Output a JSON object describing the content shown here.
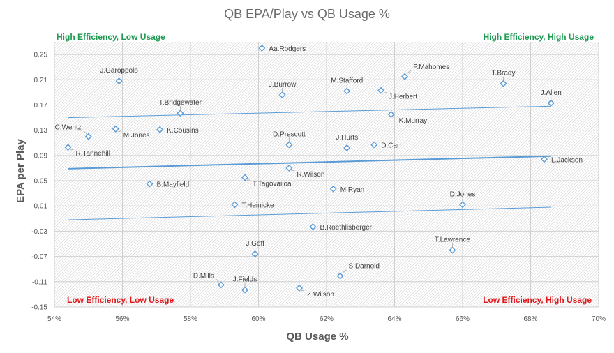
{
  "chart_data": {
    "type": "scatter",
    "title": "QB EPA/Play vs QB Usage %",
    "xlabel": "QB Usage %",
    "ylabel": "EPA per Play",
    "xlim": [
      0.54,
      0.7
    ],
    "ylim": [
      -0.15,
      0.27
    ],
    "x_ticks": [
      0.54,
      0.56,
      0.58,
      0.6,
      0.62,
      0.64,
      0.66,
      0.68,
      0.7
    ],
    "x_tick_labels": [
      "54%",
      "56%",
      "58%",
      "60%",
      "62%",
      "64%",
      "66%",
      "68%",
      "70%"
    ],
    "y_ticks": [
      -0.15,
      -0.11,
      -0.07,
      -0.03,
      0.01,
      0.05,
      0.09,
      0.13,
      0.17,
      0.21,
      0.25
    ],
    "y_tick_labels": [
      "-0.15",
      "-0.11",
      "-0.07",
      "-0.03",
      "0.01",
      "0.05",
      "0.09",
      "0.13",
      "0.17",
      "0.21",
      "0.25"
    ],
    "grid": true,
    "marker": "diamond-open",
    "marker_color": "#5b9bd5",
    "trend_color": "#5b9bd5",
    "positive_color": "#1f9a52",
    "negative_color": "#e0171b",
    "quadrant_labels": [
      {
        "text": "High Efficiency, Low Usage",
        "position": "top-left",
        "tone": "positive"
      },
      {
        "text": "High Efficiency, High Usage",
        "position": "top-right",
        "tone": "positive"
      },
      {
        "text": "Low Efficiency, Low Usage",
        "position": "bottom-left",
        "tone": "negative"
      },
      {
        "text": "Low Efficiency, High Usage",
        "position": "bottom-right",
        "tone": "negative"
      }
    ],
    "points": [
      {
        "name": "Aa.Rodgers",
        "x": 0.601,
        "y": 0.26,
        "label": "right"
      },
      {
        "name": "P.Mahomes",
        "x": 0.643,
        "y": 0.215,
        "label": "above-right"
      },
      {
        "name": "T.Brady",
        "x": 0.672,
        "y": 0.204,
        "label": "above"
      },
      {
        "name": "J.Garoppolo",
        "x": 0.559,
        "y": 0.208,
        "label": "above"
      },
      {
        "name": "J.Burrow",
        "x": 0.607,
        "y": 0.186,
        "label": "above"
      },
      {
        "name": "M.Stafford",
        "x": 0.626,
        "y": 0.192,
        "label": "above"
      },
      {
        "name": "J.Herbert",
        "x": 0.636,
        "y": 0.193,
        "label": "below-right"
      },
      {
        "name": "J.Allen",
        "x": 0.686,
        "y": 0.173,
        "label": "above"
      },
      {
        "name": "T.Bridgewater",
        "x": 0.577,
        "y": 0.157,
        "label": "above"
      },
      {
        "name": "K.Murray",
        "x": 0.639,
        "y": 0.155,
        "label": "below-right"
      },
      {
        "name": "C.Wentz",
        "x": 0.55,
        "y": 0.12,
        "label": "above-left"
      },
      {
        "name": "M.Jones",
        "x": 0.558,
        "y": 0.132,
        "label": "below-right"
      },
      {
        "name": "K.Cousins",
        "x": 0.571,
        "y": 0.131,
        "label": "right"
      },
      {
        "name": "R.Tannehill",
        "x": 0.544,
        "y": 0.103,
        "label": "below-right"
      },
      {
        "name": "D.Prescott",
        "x": 0.609,
        "y": 0.107,
        "label": "above"
      },
      {
        "name": "J.Hurts",
        "x": 0.626,
        "y": 0.102,
        "label": "above"
      },
      {
        "name": "D.Carr",
        "x": 0.634,
        "y": 0.107,
        "label": "right"
      },
      {
        "name": "L.Jackson",
        "x": 0.684,
        "y": 0.084,
        "label": "right"
      },
      {
        "name": "R.Wilson",
        "x": 0.609,
        "y": 0.07,
        "label": "below-right"
      },
      {
        "name": "T.Tagovailoa",
        "x": 0.596,
        "y": 0.055,
        "label": "below-right"
      },
      {
        "name": "B.Mayfield",
        "x": 0.568,
        "y": 0.045,
        "label": "right"
      },
      {
        "name": "M.Ryan",
        "x": 0.622,
        "y": 0.037,
        "label": "right"
      },
      {
        "name": "D.Jones",
        "x": 0.66,
        "y": 0.012,
        "label": "above"
      },
      {
        "name": "T.Heinicke",
        "x": 0.593,
        "y": 0.012,
        "label": "right"
      },
      {
        "name": "B.Roethlisberger",
        "x": 0.616,
        "y": -0.023,
        "label": "right"
      },
      {
        "name": "T.Lawrence",
        "x": 0.657,
        "y": -0.06,
        "label": "above"
      },
      {
        "name": "J.Goff",
        "x": 0.599,
        "y": -0.066,
        "label": "above"
      },
      {
        "name": "S.Darnold",
        "x": 0.624,
        "y": -0.101,
        "label": "above-right"
      },
      {
        "name": "D.Mills",
        "x": 0.589,
        "y": -0.115,
        "label": "above-left"
      },
      {
        "name": "J.Fields",
        "x": 0.596,
        "y": -0.123,
        "label": "above"
      },
      {
        "name": "Z.Wilson",
        "x": 0.612,
        "y": -0.12,
        "label": "below-right"
      }
    ],
    "trendlines": [
      {
        "name": "upper-band",
        "x": [
          0.544,
          0.686
        ],
        "y": [
          0.15,
          0.168
        ],
        "width": "thin"
      },
      {
        "name": "trend",
        "x": [
          0.544,
          0.686
        ],
        "y": [
          0.069,
          0.089
        ],
        "width": "thick"
      },
      {
        "name": "lower-band",
        "x": [
          0.544,
          0.686
        ],
        "y": [
          -0.012,
          0.008
        ],
        "width": "thin"
      }
    ]
  }
}
